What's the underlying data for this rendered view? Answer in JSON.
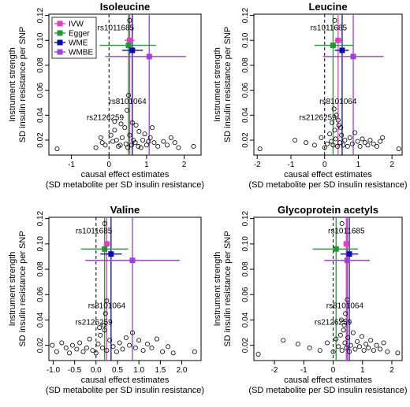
{
  "chart_data": [
    {
      "type": "scatter",
      "title": "Isoleucine",
      "xlabel": [
        "causal effect estimates",
        "(SD metabolite per SD insulin resistance)"
      ],
      "ylabel": [
        "Instrument strength",
        "SD insulin resistance per SNP"
      ],
      "xlim": [
        -1.6,
        2.45
      ],
      "ylim": [
        0.008,
        0.121
      ],
      "xticks": [
        -1,
        0,
        1,
        2
      ],
      "yticks": [
        0.02,
        0.04,
        0.06,
        0.08,
        0.1,
        0.12
      ],
      "legend": {
        "position": "top-left",
        "entries": [
          {
            "label": "IVW",
            "color": "#e040c0"
          },
          {
            "label": "Egger",
            "color": "#1f9a2e"
          },
          {
            "label": "WME",
            "color": "#0a0ab8"
          },
          {
            "label": "WMBE",
            "color": "#a040d8"
          }
        ]
      },
      "points": [
        {
          "x": -1.38,
          "y": 0.013
        },
        {
          "x": -0.35,
          "y": 0.014
        },
        {
          "x": -0.22,
          "y": 0.022
        },
        {
          "x": -0.18,
          "y": 0.018
        },
        {
          "x": -0.1,
          "y": 0.016
        },
        {
          "x": 0.05,
          "y": 0.024
        },
        {
          "x": 0.15,
          "y": 0.028
        },
        {
          "x": 0.2,
          "y": 0.02
        },
        {
          "x": 0.25,
          "y": 0.015
        },
        {
          "x": 0.3,
          "y": 0.016
        },
        {
          "x": 0.35,
          "y": 0.022
        },
        {
          "x": 0.42,
          "y": 0.03
        },
        {
          "x": 0.45,
          "y": 0.017
        },
        {
          "x": 0.5,
          "y": 0.014
        },
        {
          "x": 0.55,
          "y": 0.024
        },
        {
          "x": 0.6,
          "y": 0.016
        },
        {
          "x": 0.65,
          "y": 0.02
        },
        {
          "x": 0.7,
          "y": 0.018
        },
        {
          "x": 0.72,
          "y": 0.032
        },
        {
          "x": 0.78,
          "y": 0.015
        },
        {
          "x": 0.8,
          "y": 0.027
        },
        {
          "x": 0.85,
          "y": 0.014
        },
        {
          "x": 0.9,
          "y": 0.02
        },
        {
          "x": 0.95,
          "y": 0.025
        },
        {
          "x": 1.0,
          "y": 0.016
        },
        {
          "x": 1.05,
          "y": 0.019
        },
        {
          "x": 1.1,
          "y": 0.022
        },
        {
          "x": 1.15,
          "y": 0.03
        },
        {
          "x": 1.2,
          "y": 0.018
        },
        {
          "x": 1.3,
          "y": 0.015
        },
        {
          "x": 1.45,
          "y": 0.019
        },
        {
          "x": 1.55,
          "y": 0.016
        },
        {
          "x": 1.65,
          "y": 0.022
        },
        {
          "x": 1.75,
          "y": 0.018
        },
        {
          "x": 1.85,
          "y": 0.014
        },
        {
          "x": 2.25,
          "y": 0.015
        },
        {
          "x": 0.15,
          "y": 0.035
        },
        {
          "x": 0.1,
          "y": 0.019
        },
        {
          "x": 0.32,
          "y": 0.033
        },
        {
          "x": 0.62,
          "y": 0.034
        },
        {
          "x": 0.48,
          "y": 0.044
        },
        {
          "x": 0.52,
          "y": 0.056
        },
        {
          "x": 0.55,
          "y": 0.116
        }
      ],
      "labels": [
        {
          "text": "rs1011685",
          "x": 0.18,
          "y": 0.11
        },
        {
          "text": "rs8101064",
          "x": 0.5,
          "y": 0.051
        },
        {
          "text": "rs2126259",
          "x": -0.1,
          "y": 0.038
        }
      ],
      "estimates": [
        {
          "method": "IVW",
          "x": 0.55,
          "y": 0.1,
          "ci": [
            0.42,
            0.68
          ]
        },
        {
          "method": "Egger",
          "x": 0.52,
          "y": 0.096,
          "ci": [
            -0.25,
            1.25
          ]
        },
        {
          "method": "WME",
          "x": 0.62,
          "y": 0.092,
          "ci": [
            0.35,
            0.9
          ]
        },
        {
          "method": "WMBE",
          "x": 1.07,
          "y": 0.087,
          "ci": [
            -0.1,
            2.05
          ]
        }
      ]
    },
    {
      "type": "scatter",
      "title": "Leucine",
      "xlabel": [
        "causal effect estimates",
        "(SD metabolite per SD insulin resistance)"
      ],
      "ylabel": [
        "Instrument strength",
        "SD insulin resistance per SNP"
      ],
      "xlim": [
        -2.1,
        2.3
      ],
      "ylim": [
        0.008,
        0.121
      ],
      "xticks": [
        -2,
        -1,
        0,
        1,
        2
      ],
      "yticks": [
        0.02,
        0.04,
        0.06,
        0.08,
        0.1,
        0.12
      ],
      "points": [
        {
          "x": -1.92,
          "y": 0.013
        },
        {
          "x": -0.88,
          "y": 0.02
        },
        {
          "x": -0.55,
          "y": 0.018
        },
        {
          "x": -0.3,
          "y": 0.016
        },
        {
          "x": -0.1,
          "y": 0.022
        },
        {
          "x": 0.0,
          "y": 0.014
        },
        {
          "x": 0.08,
          "y": 0.017
        },
        {
          "x": 0.15,
          "y": 0.025
        },
        {
          "x": 0.2,
          "y": 0.019
        },
        {
          "x": 0.25,
          "y": 0.016
        },
        {
          "x": 0.3,
          "y": 0.028
        },
        {
          "x": 0.33,
          "y": 0.021
        },
        {
          "x": 0.38,
          "y": 0.015
        },
        {
          "x": 0.42,
          "y": 0.032
        },
        {
          "x": 0.45,
          "y": 0.018
        },
        {
          "x": 0.5,
          "y": 0.024
        },
        {
          "x": 0.55,
          "y": 0.016
        },
        {
          "x": 0.6,
          "y": 0.02
        },
        {
          "x": 0.68,
          "y": 0.015
        },
        {
          "x": 0.75,
          "y": 0.022
        },
        {
          "x": 0.82,
          "y": 0.017
        },
        {
          "x": 0.9,
          "y": 0.026
        },
        {
          "x": 0.98,
          "y": 0.019
        },
        {
          "x": 1.05,
          "y": 0.015
        },
        {
          "x": 1.12,
          "y": 0.021
        },
        {
          "x": 1.2,
          "y": 0.018
        },
        {
          "x": 1.28,
          "y": 0.016
        },
        {
          "x": 1.35,
          "y": 0.02
        },
        {
          "x": 1.45,
          "y": 0.017
        },
        {
          "x": 1.55,
          "y": 0.015
        },
        {
          "x": 1.65,
          "y": 0.019
        },
        {
          "x": 1.72,
          "y": 0.022
        },
        {
          "x": 2.2,
          "y": 0.013
        },
        {
          "x": 0.22,
          "y": 0.034
        },
        {
          "x": 0.35,
          "y": 0.04
        },
        {
          "x": 0.4,
          "y": 0.036
        },
        {
          "x": 0.28,
          "y": 0.045
        },
        {
          "x": 0.3,
          "y": 0.116
        },
        {
          "x": 0.48,
          "y": 0.03
        }
      ],
      "labels": [
        {
          "text": "rs1011685",
          "x": 0.12,
          "y": 0.11
        },
        {
          "text": "rs8101064",
          "x": 0.4,
          "y": 0.051
        },
        {
          "text": "rs2126259",
          "x": -0.2,
          "y": 0.038
        }
      ],
      "estimates": [
        {
          "method": "IVW",
          "x": 0.4,
          "y": 0.1,
          "ci": [
            0.3,
            0.5
          ]
        },
        {
          "method": "Egger",
          "x": 0.25,
          "y": 0.096,
          "ci": [
            -0.3,
            0.85
          ]
        },
        {
          "method": "WME",
          "x": 0.52,
          "y": 0.092,
          "ci": [
            0.3,
            0.72
          ]
        },
        {
          "method": "WMBE",
          "x": 0.85,
          "y": 0.087,
          "ci": [
            -0.05,
            1.75
          ]
        }
      ]
    },
    {
      "type": "scatter",
      "title": "Valine",
      "xlabel": [
        "causal effect estimates",
        "(SD metabolite per SD insulin resistance)"
      ],
      "ylabel": [
        "Instrument strength",
        "SD insulin resistance per SNP"
      ],
      "xlim": [
        -1.1,
        2.45
      ],
      "ylim": [
        0.008,
        0.121
      ],
      "xticks": [
        -1.0,
        -0.5,
        0.0,
        0.5,
        1.0,
        1.5,
        2.0
      ],
      "yticks": [
        0.02,
        0.04,
        0.06,
        0.08,
        0.1,
        0.12
      ],
      "points": [
        {
          "x": -1.02,
          "y": 0.02
        },
        {
          "x": -0.92,
          "y": 0.015
        },
        {
          "x": -0.8,
          "y": 0.022
        },
        {
          "x": -0.7,
          "y": 0.018
        },
        {
          "x": -0.62,
          "y": 0.014
        },
        {
          "x": -0.55,
          "y": 0.02
        },
        {
          "x": -0.45,
          "y": 0.017
        },
        {
          "x": -0.38,
          "y": 0.022
        },
        {
          "x": -0.3,
          "y": 0.015
        },
        {
          "x": -0.22,
          "y": 0.018
        },
        {
          "x": -0.15,
          "y": 0.025
        },
        {
          "x": -0.08,
          "y": 0.016
        },
        {
          "x": 0.0,
          "y": 0.014
        },
        {
          "x": 0.05,
          "y": 0.021
        },
        {
          "x": 0.1,
          "y": 0.028
        },
        {
          "x": 0.15,
          "y": 0.018
        },
        {
          "x": 0.2,
          "y": 0.032
        },
        {
          "x": 0.25,
          "y": 0.016
        },
        {
          "x": 0.32,
          "y": 0.024
        },
        {
          "x": 0.4,
          "y": 0.019
        },
        {
          "x": 0.48,
          "y": 0.015
        },
        {
          "x": 0.55,
          "y": 0.022
        },
        {
          "x": 0.62,
          "y": 0.017
        },
        {
          "x": 0.7,
          "y": 0.026
        },
        {
          "x": 0.78,
          "y": 0.02
        },
        {
          "x": 0.85,
          "y": 0.03
        },
        {
          "x": 0.92,
          "y": 0.018
        },
        {
          "x": 1.0,
          "y": 0.024
        },
        {
          "x": 1.1,
          "y": 0.016
        },
        {
          "x": 1.2,
          "y": 0.021
        },
        {
          "x": 1.3,
          "y": 0.018
        },
        {
          "x": 1.42,
          "y": 0.025
        },
        {
          "x": 1.55,
          "y": 0.015
        },
        {
          "x": 1.68,
          "y": 0.019
        },
        {
          "x": 1.8,
          "y": 0.014
        },
        {
          "x": 2.3,
          "y": 0.015
        },
        {
          "x": 0.18,
          "y": 0.036
        },
        {
          "x": 0.22,
          "y": 0.045
        },
        {
          "x": 0.25,
          "y": 0.055
        },
        {
          "x": 0.08,
          "y": 0.034
        },
        {
          "x": 0.2,
          "y": 0.116
        }
      ],
      "labels": [
        {
          "text": "rs1011685",
          "x": -0.05,
          "y": 0.11
        },
        {
          "text": "rs8101064",
          "x": 0.25,
          "y": 0.051
        },
        {
          "text": "rs2126259",
          "x": -0.05,
          "y": 0.038
        }
      ],
      "estimates": [
        {
          "method": "IVW",
          "x": 0.25,
          "y": 0.1,
          "ci": [
            0.18,
            0.32
          ]
        },
        {
          "method": "Egger",
          "x": 0.2,
          "y": 0.096,
          "ci": [
            -0.35,
            0.75
          ]
        },
        {
          "method": "WME",
          "x": 0.35,
          "y": 0.092,
          "ci": [
            0.1,
            0.6
          ]
        },
        {
          "method": "WMBE",
          "x": 0.85,
          "y": 0.087,
          "ci": [
            -0.25,
            1.95
          ]
        }
      ]
    },
    {
      "type": "scatter",
      "title": "Glycoprotein acetyls",
      "xlabel": [
        "causal effect estimates",
        "(SD metabolite per SD insulin resistance)"
      ],
      "ylabel": [
        "Instrument strength",
        "SD insulin resistance per SNP"
      ],
      "xlim": [
        -2.7,
        2.35
      ],
      "ylim": [
        0.008,
        0.121
      ],
      "xticks": [
        -2,
        -1,
        0,
        1,
        2
      ],
      "yticks": [
        0.02,
        0.04,
        0.06,
        0.08,
        0.1,
        0.12
      ],
      "points": [
        {
          "x": -2.55,
          "y": 0.013
        },
        {
          "x": -1.7,
          "y": 0.024
        },
        {
          "x": -1.2,
          "y": 0.021
        },
        {
          "x": -0.8,
          "y": 0.018
        },
        {
          "x": -0.45,
          "y": 0.016
        },
        {
          "x": -0.2,
          "y": 0.022
        },
        {
          "x": 0.0,
          "y": 0.015
        },
        {
          "x": 0.1,
          "y": 0.025
        },
        {
          "x": 0.18,
          "y": 0.019
        },
        {
          "x": 0.25,
          "y": 0.028
        },
        {
          "x": 0.3,
          "y": 0.016
        },
        {
          "x": 0.35,
          "y": 0.032
        },
        {
          "x": 0.4,
          "y": 0.022
        },
        {
          "x": 0.45,
          "y": 0.018
        },
        {
          "x": 0.5,
          "y": 0.026
        },
        {
          "x": 0.55,
          "y": 0.015
        },
        {
          "x": 0.6,
          "y": 0.02
        },
        {
          "x": 0.68,
          "y": 0.03
        },
        {
          "x": 0.75,
          "y": 0.017
        },
        {
          "x": 0.82,
          "y": 0.023
        },
        {
          "x": 0.9,
          "y": 0.019
        },
        {
          "x": 0.98,
          "y": 0.027
        },
        {
          "x": 1.05,
          "y": 0.016
        },
        {
          "x": 1.12,
          "y": 0.021
        },
        {
          "x": 1.2,
          "y": 0.018
        },
        {
          "x": 1.28,
          "y": 0.024
        },
        {
          "x": 1.38,
          "y": 0.016
        },
        {
          "x": 1.48,
          "y": 0.02
        },
        {
          "x": 1.6,
          "y": 0.017
        },
        {
          "x": 1.72,
          "y": 0.022
        },
        {
          "x": 1.85,
          "y": 0.015
        },
        {
          "x": 2.2,
          "y": 0.014
        },
        {
          "x": 0.38,
          "y": 0.036
        },
        {
          "x": 0.42,
          "y": 0.045
        },
        {
          "x": 0.48,
          "y": 0.056
        },
        {
          "x": 0.28,
          "y": 0.04
        },
        {
          "x": 0.3,
          "y": 0.116
        }
      ],
      "labels": [
        {
          "text": "rs1011685",
          "x": 0.45,
          "y": 0.11
        },
        {
          "text": "rs8101064",
          "x": 0.4,
          "y": 0.051
        },
        {
          "text": "rs2126259",
          "x": 0.0,
          "y": 0.038
        }
      ],
      "estimates": [
        {
          "method": "IVW",
          "x": 0.45,
          "y": 0.1,
          "ci": [
            0.35,
            0.55
          ]
        },
        {
          "method": "Egger",
          "x": 0.1,
          "y": 0.096,
          "ci": [
            -0.7,
            0.85
          ]
        },
        {
          "method": "WME",
          "x": 0.55,
          "y": 0.092,
          "ci": [
            0.25,
            0.85
          ]
        },
        {
          "method": "WMBE",
          "x": 0.48,
          "y": 0.087,
          "ci": [
            -0.3,
            1.25
          ]
        }
      ]
    }
  ]
}
